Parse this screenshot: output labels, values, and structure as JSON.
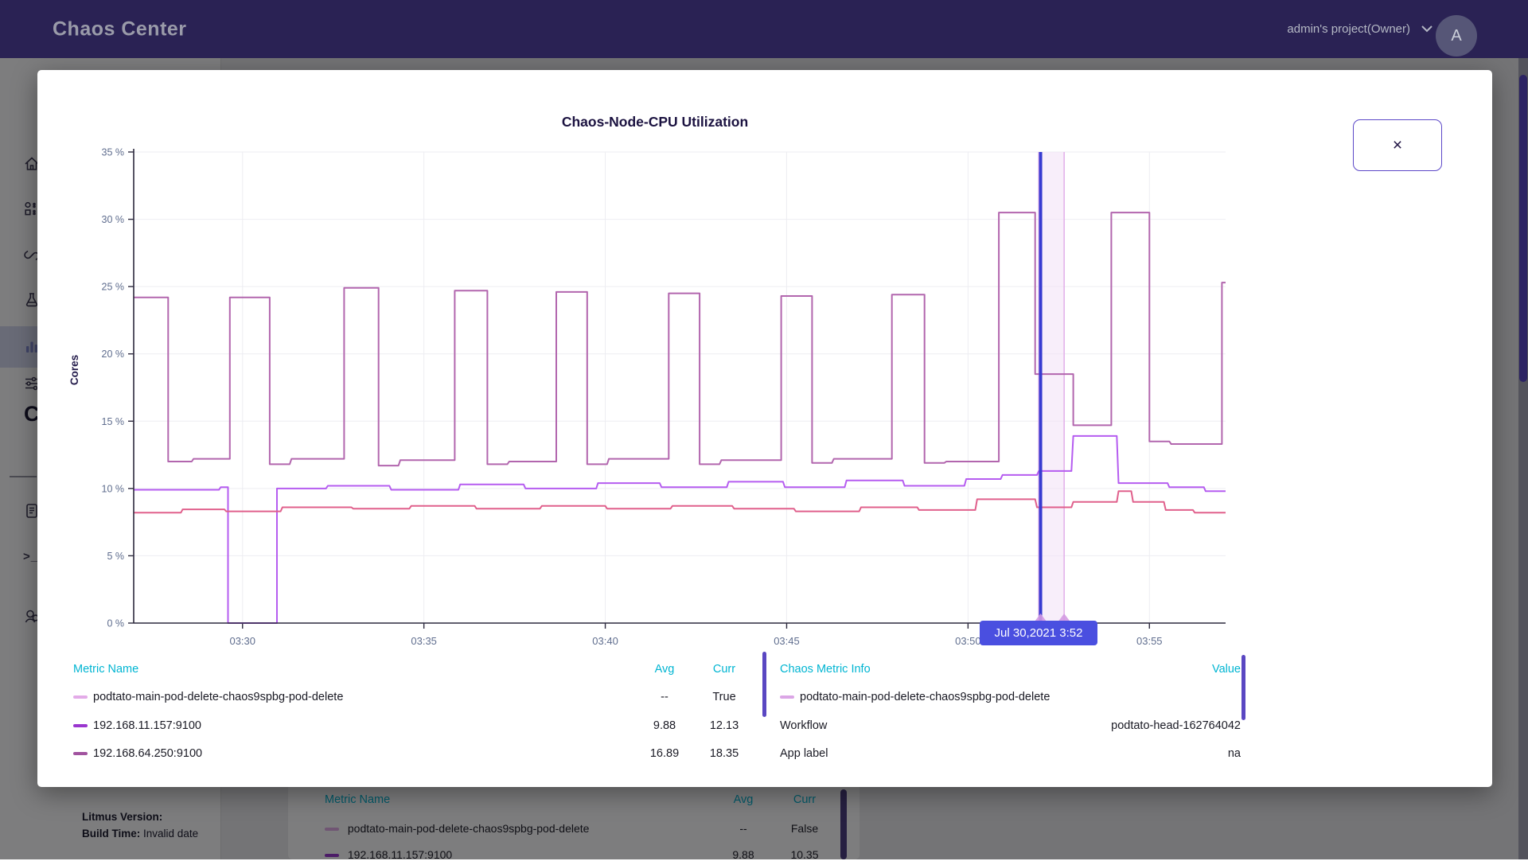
{
  "header": {
    "app_title": "Chaos Center",
    "project_selector": "admin's project(Owner)",
    "chevron_icon": "chevron-down-icon",
    "avatar_letter": "A"
  },
  "sidebar": {
    "icons": [
      "home-icon",
      "workflows-icon",
      "agents-link-icon",
      "chaoshubs-flask-icon",
      "analytics-chart-icon",
      "settings-sliders-icon",
      "clipped-c-glyph",
      "docs-icon",
      "terminal-icon",
      "support-person-icon"
    ],
    "active_item": "analytics",
    "clipped_glyph": "C",
    "terminal_glyph": ">_",
    "footer": {
      "version_label": "Litmus Version:",
      "build_time_label": "Build Time:",
      "build_time_value": "Invalid date"
    }
  },
  "modal": {
    "close_icon": "×",
    "tooltip": "Jul 30,2021 3:52",
    "chart_data": {
      "type": "line",
      "title": "Chaos-Node-CPU Utilization",
      "xlabel": "",
      "ylabel": "Cores",
      "x_unit": "minutes after 03:00 (time of day)",
      "xlim": [
        27.0,
        57.1
      ],
      "ylim": [
        0,
        35
      ],
      "grid": true,
      "legend_position": "bottom-table",
      "y_ticks": [
        {
          "v": 0,
          "label": "0 %"
        },
        {
          "v": 5,
          "label": "5 %"
        },
        {
          "v": 10,
          "label": "10 %"
        },
        {
          "v": 15,
          "label": "15 %"
        },
        {
          "v": 20,
          "label": "20 %"
        },
        {
          "v": 25,
          "label": "25 %"
        },
        {
          "v": 30,
          "label": "30 %"
        },
        {
          "v": 35,
          "label": "35 %"
        }
      ],
      "x_ticks": [
        {
          "t": 30,
          "label": "03:30"
        },
        {
          "t": 35,
          "label": "03:35"
        },
        {
          "t": 40,
          "label": "03:40"
        },
        {
          "t": 45,
          "label": "03:45"
        },
        {
          "t": 50,
          "label": "03:50"
        },
        {
          "t": 55,
          "label": "03:55"
        }
      ],
      "series": [
        {
          "name": "192.168.64.250:9100",
          "color": "#b266ae",
          "points": [
            [
              27.0,
              24.2
            ],
            [
              27.95,
              24.2
            ],
            [
              27.95,
              12.0
            ],
            [
              28.6,
              12.0
            ],
            [
              28.65,
              12.2
            ],
            [
              29.65,
              12.2
            ],
            [
              29.65,
              24.2
            ],
            [
              30.75,
              24.2
            ],
            [
              30.75,
              11.8
            ],
            [
              31.3,
              11.8
            ],
            [
              31.35,
              12.2
            ],
            [
              32.8,
              12.2
            ],
            [
              32.8,
              24.9
            ],
            [
              33.75,
              24.9
            ],
            [
              33.75,
              11.7
            ],
            [
              34.3,
              11.7
            ],
            [
              34.35,
              12.1
            ],
            [
              35.85,
              12.1
            ],
            [
              35.85,
              24.7
            ],
            [
              36.75,
              24.7
            ],
            [
              36.75,
              11.8
            ],
            [
              37.3,
              11.8
            ],
            [
              37.35,
              12.0
            ],
            [
              38.65,
              12.0
            ],
            [
              38.65,
              24.6
            ],
            [
              39.5,
              24.6
            ],
            [
              39.5,
              11.8
            ],
            [
              40.05,
              11.8
            ],
            [
              40.1,
              12.2
            ],
            [
              41.75,
              12.2
            ],
            [
              41.75,
              24.5
            ],
            [
              42.6,
              24.5
            ],
            [
              42.6,
              11.8
            ],
            [
              43.15,
              11.8
            ],
            [
              43.2,
              12.1
            ],
            [
              44.85,
              12.1
            ],
            [
              44.85,
              24.3
            ],
            [
              45.7,
              24.3
            ],
            [
              45.7,
              11.9
            ],
            [
              46.25,
              11.9
            ],
            [
              46.3,
              12.2
            ],
            [
              47.9,
              12.2
            ],
            [
              47.9,
              24.4
            ],
            [
              48.8,
              24.4
            ],
            [
              48.8,
              11.9
            ],
            [
              49.35,
              11.9
            ],
            [
              49.4,
              12.0
            ],
            [
              50.85,
              12.0
            ],
            [
              50.85,
              30.5
            ],
            [
              51.85,
              30.5
            ],
            [
              51.85,
              18.5
            ],
            [
              52.9,
              18.5
            ],
            [
              52.9,
              14.7
            ],
            [
              53.95,
              14.7
            ],
            [
              53.95,
              30.5
            ],
            [
              55.0,
              30.5
            ],
            [
              55.0,
              13.5
            ],
            [
              55.55,
              13.5
            ],
            [
              55.6,
              13.3
            ],
            [
              57.0,
              13.3
            ],
            [
              57.0,
              25.3
            ],
            [
              57.1,
              25.3
            ]
          ]
        },
        {
          "name": "192.168.11.157:9100",
          "color": "#b55cf0",
          "points": [
            [
              27.0,
              9.9
            ],
            [
              29.35,
              9.9
            ],
            [
              29.4,
              10.1
            ],
            [
              29.6,
              10.1
            ],
            [
              29.6,
              0.0
            ],
            [
              30.95,
              0.0
            ],
            [
              30.95,
              10.0
            ],
            [
              32.3,
              10.0
            ],
            [
              32.35,
              10.2
            ],
            [
              34.05,
              10.2
            ],
            [
              34.1,
              9.9
            ],
            [
              35.95,
              9.9
            ],
            [
              36.0,
              10.3
            ],
            [
              37.75,
              10.3
            ],
            [
              37.8,
              10.0
            ],
            [
              39.75,
              10.0
            ],
            [
              39.8,
              10.4
            ],
            [
              41.5,
              10.4
            ],
            [
              41.55,
              10.1
            ],
            [
              43.35,
              10.1
            ],
            [
              43.4,
              10.5
            ],
            [
              44.9,
              10.5
            ],
            [
              44.95,
              10.1
            ],
            [
              46.6,
              10.1
            ],
            [
              46.65,
              10.6
            ],
            [
              48.2,
              10.6
            ],
            [
              48.25,
              10.2
            ],
            [
              49.9,
              10.2
            ],
            [
              49.95,
              10.7
            ],
            [
              50.9,
              10.7
            ],
            [
              50.95,
              11.0
            ],
            [
              51.9,
              11.0
            ],
            [
              51.95,
              11.3
            ],
            [
              52.85,
              11.3
            ],
            [
              52.9,
              13.9
            ],
            [
              54.1,
              13.9
            ],
            [
              54.15,
              10.4
            ],
            [
              55.5,
              10.4
            ],
            [
              55.55,
              10.1
            ],
            [
              56.5,
              10.1
            ],
            [
              56.55,
              9.8
            ],
            [
              57.1,
              9.8
            ]
          ]
        },
        {
          "name": "",
          "color": "#e0608c",
          "points": [
            [
              27.0,
              8.2
            ],
            [
              28.3,
              8.2
            ],
            [
              28.35,
              8.45
            ],
            [
              29.5,
              8.45
            ],
            [
              29.55,
              8.3
            ],
            [
              31.05,
              8.3
            ],
            [
              31.1,
              8.6
            ],
            [
              33.0,
              8.6
            ],
            [
              33.05,
              8.5
            ],
            [
              34.6,
              8.5
            ],
            [
              34.65,
              8.7
            ],
            [
              36.4,
              8.7
            ],
            [
              36.45,
              8.5
            ],
            [
              38.2,
              8.5
            ],
            [
              38.25,
              8.7
            ],
            [
              40.0,
              8.7
            ],
            [
              40.05,
              8.5
            ],
            [
              41.8,
              8.5
            ],
            [
              41.85,
              8.7
            ],
            [
              43.5,
              8.7
            ],
            [
              43.55,
              8.5
            ],
            [
              45.2,
              8.5
            ],
            [
              45.25,
              8.3
            ],
            [
              47.0,
              8.3
            ],
            [
              47.05,
              8.6
            ],
            [
              48.6,
              8.6
            ],
            [
              48.65,
              8.4
            ],
            [
              50.2,
              8.4
            ],
            [
              50.25,
              9.2
            ],
            [
              51.85,
              9.2
            ],
            [
              51.9,
              8.6
            ],
            [
              52.85,
              8.6
            ],
            [
              52.9,
              9.0
            ],
            [
              54.1,
              9.0
            ],
            [
              54.15,
              9.8
            ],
            [
              54.5,
              9.8
            ],
            [
              54.55,
              9.0
            ],
            [
              55.4,
              9.0
            ],
            [
              55.45,
              8.4
            ],
            [
              56.2,
              8.4
            ],
            [
              56.25,
              8.2
            ],
            [
              57.1,
              8.2
            ]
          ]
        }
      ],
      "chaos_event": {
        "name": "podtato-main-pod-delete-chaos9spbg-pod-delete",
        "band_start": 51.95,
        "band_end": 52.65,
        "cursor_t": 52.0,
        "band_color": "#f3e3f7",
        "band_edge_color": "#e2aee9",
        "cursor_color": "#383bd1",
        "marker_color": "#d49ae2",
        "tooltip": "Jul 30,2021 3:52"
      },
      "axis_color": "#2d2a3e",
      "grid_color": "#ededf2",
      "tick_label_color": "#5f6d8e"
    },
    "legend_table": {
      "headers": [
        "Metric Name",
        "Avg",
        "Curr"
      ],
      "rows": [
        {
          "color": "#e3abe8",
          "name": "podtato-main-pod-delete-chaos9spbg-pod-delete",
          "avg": "--",
          "curr": "True"
        },
        {
          "color": "#9a36cf",
          "name": "192.168.11.157:9100",
          "avg": "9.88",
          "curr": "12.13"
        },
        {
          "color": "#a1539f",
          "name": "192.168.64.250:9100",
          "avg": "16.89",
          "curr": "18.35"
        }
      ]
    },
    "chaos_table": {
      "headers": [
        "Chaos Metric Info",
        "Value"
      ],
      "metric": {
        "color": "#dba6e6",
        "name": "podtato-main-pod-delete-chaos9spbg-pod-delete"
      },
      "rows": [
        {
          "label": "Workflow",
          "value": "podtato-head-162764042"
        },
        {
          "label": "App label",
          "value": "na"
        }
      ]
    }
  },
  "background_table": {
    "headers": [
      "Metric Name",
      "Avg",
      "Curr"
    ],
    "rows": [
      {
        "color": "#e3abe8",
        "name": "podtato-main-pod-delete-chaos9spbg-pod-delete",
        "avg": "--",
        "curr": "False"
      },
      {
        "color": "#9a36cf",
        "name": "192.168.11.157:9100",
        "avg": "9.88",
        "curr": "10.35"
      }
    ]
  }
}
